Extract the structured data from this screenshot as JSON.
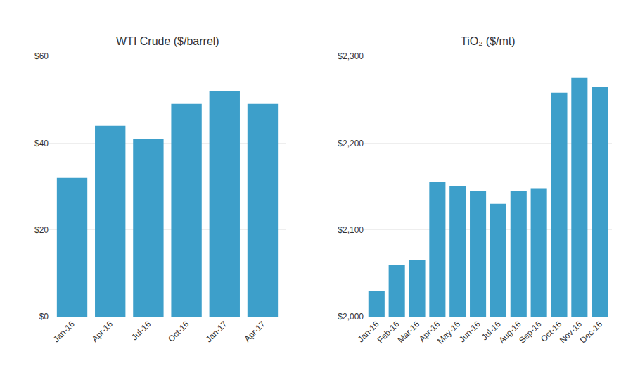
{
  "chart_data": [
    {
      "type": "bar",
      "title": "WTI Crude ($/barrel)",
      "categories": [
        "Jan-16",
        "Apr-16",
        "Jul-16",
        "Oct-16",
        "Jan-17",
        "Apr-17"
      ],
      "values": [
        32,
        44,
        41,
        49,
        52,
        49
      ],
      "color": "#3d9fca",
      "ylim": [
        0,
        60
      ],
      "yticks": [
        {
          "value": 0,
          "label": "$0"
        },
        {
          "value": 20,
          "label": "$20"
        },
        {
          "value": 40,
          "label": "$40"
        },
        {
          "value": 60,
          "label": "$60"
        }
      ],
      "grid": true
    },
    {
      "type": "bar",
      "title": "TiO₂ ($/mt)",
      "categories": [
        "Jan-16",
        "Feb-16",
        "Mar-16",
        "Apr-16",
        "May-16",
        "Jun-16",
        "Jul-16",
        "Aug-16",
        "Sep-16",
        "Oct-16",
        "Nov-16",
        "Dec-16"
      ],
      "values": [
        2030,
        2060,
        2065,
        2155,
        2150,
        2145,
        2130,
        2145,
        2148,
        2258,
        2275,
        2265
      ],
      "color": "#3d9fca",
      "ylim": [
        2000,
        2300
      ],
      "yticks": [
        {
          "value": 2000,
          "label": "$2,000"
        },
        {
          "value": 2100,
          "label": "$2,100"
        },
        {
          "value": 2200,
          "label": "$2,200"
        },
        {
          "value": 2300,
          "label": "$2,300"
        }
      ],
      "grid": true
    }
  ]
}
